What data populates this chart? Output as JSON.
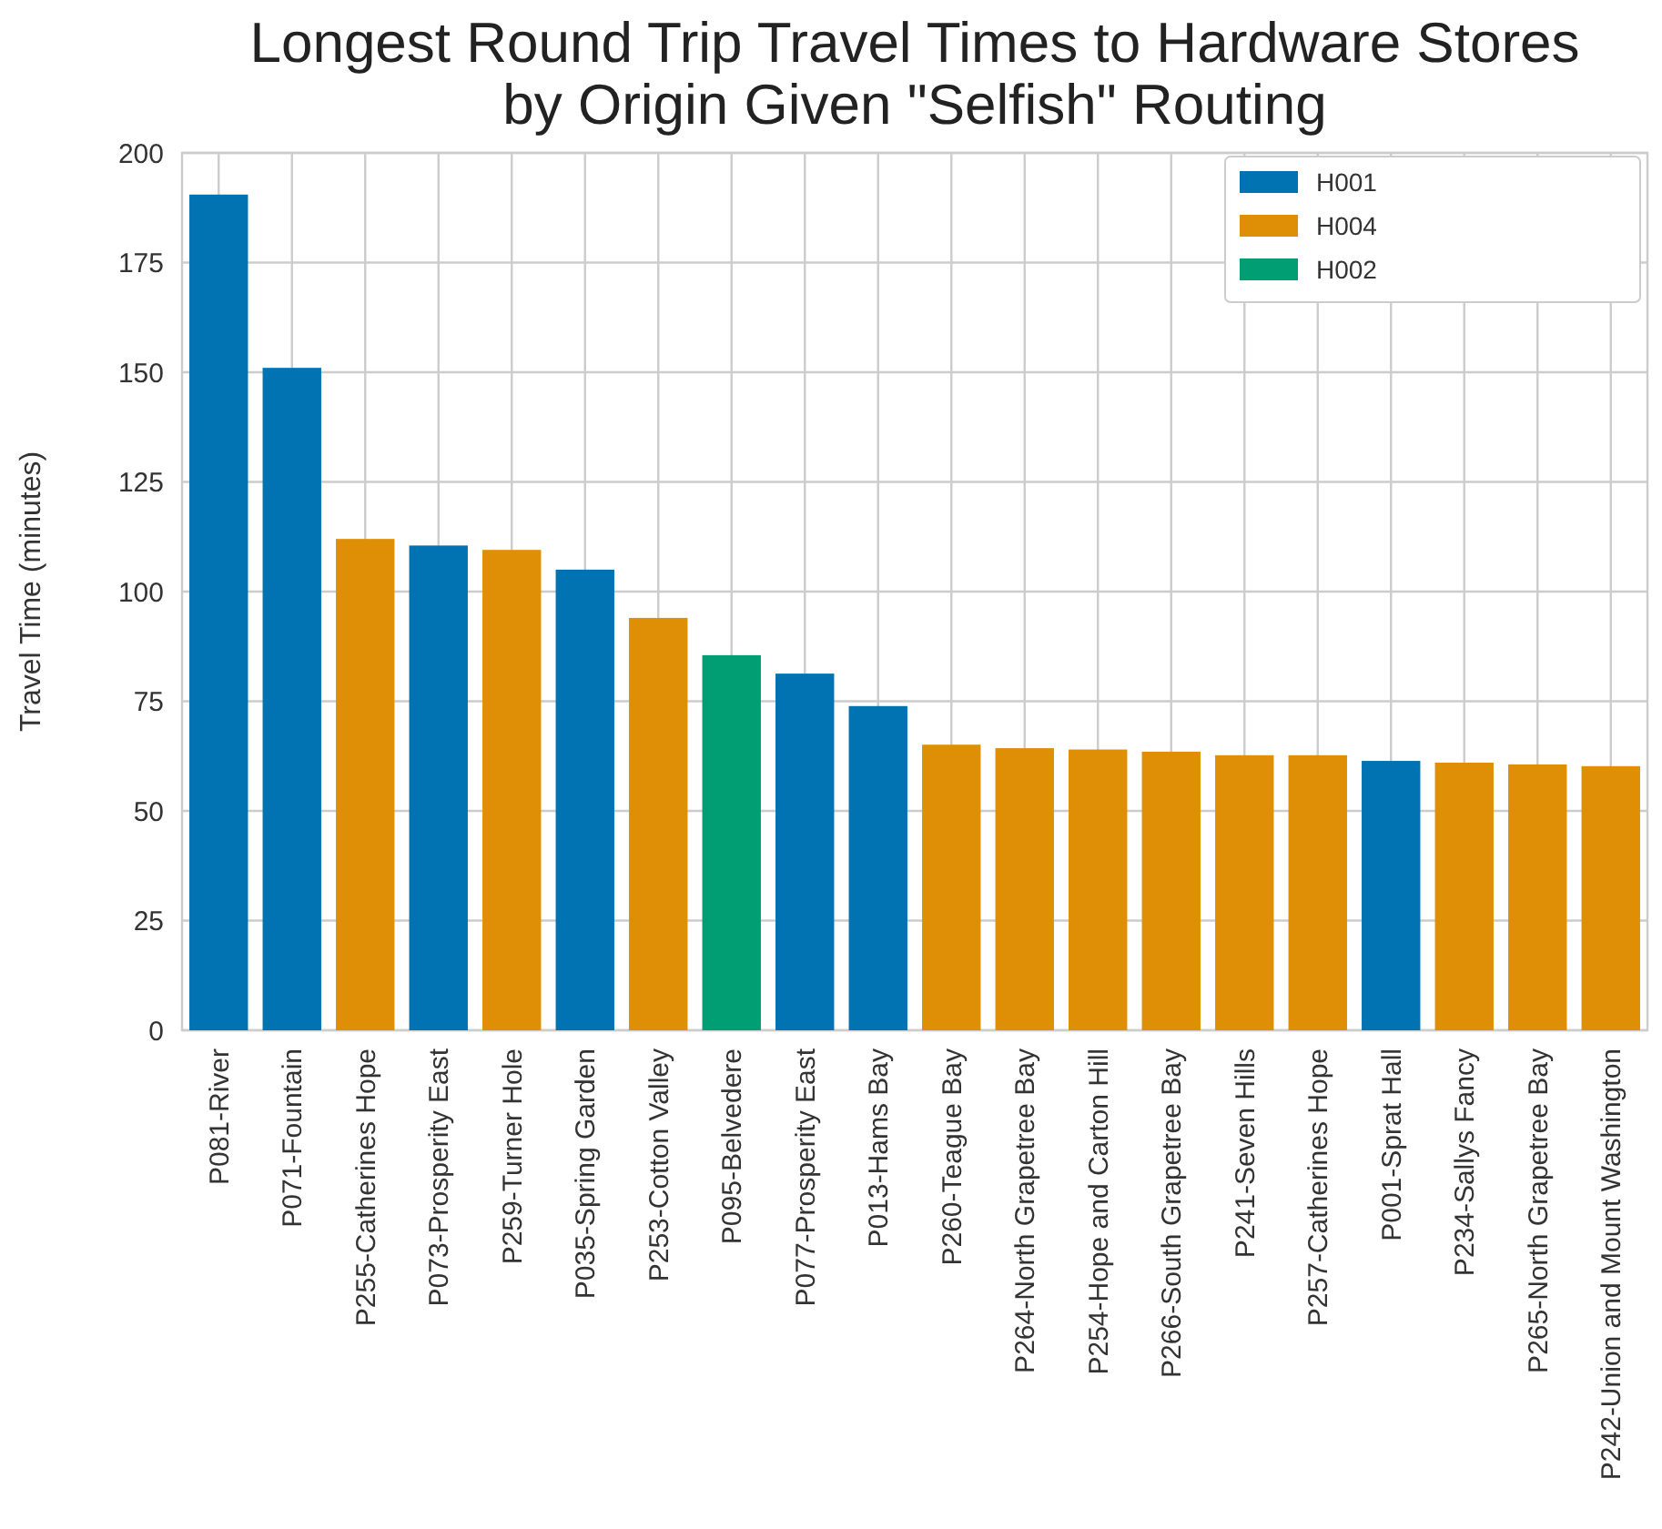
{
  "chart_data": {
    "type": "bar",
    "title": "Longest Round Trip Travel Times to Hardware Stores\nby Origin Given \"Selfish\" Routing",
    "ylabel": "Travel Time (minutes)",
    "categories": [
      "P081-River",
      "P071-Fountain",
      "P255-Catherines Hope",
      "P073-Prosperity East",
      "P259-Turner Hole",
      "P035-Spring Garden",
      "P253-Cotton Valley",
      "P095-Belvedere",
      "P077-Prosperity East",
      "P013-Hams Bay",
      "P260-Teague Bay",
      "P264-North Grapetree Bay",
      "P254-Hope and Carton Hill",
      "P266-South Grapetree Bay",
      "P241-Seven Hills",
      "P257-Catherines Hope",
      "P001-Sprat Hall",
      "P234-Sallys Fancy",
      "P265-North Grapetree Bay",
      "P242-Union and Mount Washington"
    ],
    "series": [
      {
        "name": "H001",
        "color": "#0173b2",
        "values": [
          190.5,
          151,
          null,
          110.5,
          null,
          105,
          null,
          null,
          81.3,
          73.9,
          null,
          null,
          null,
          null,
          null,
          null,
          61.4,
          null,
          null,
          null
        ]
      },
      {
        "name": "H004",
        "color": "#de8f05",
        "values": [
          null,
          null,
          112,
          null,
          109.5,
          null,
          94,
          null,
          null,
          null,
          65.1,
          64.3,
          64,
          63.5,
          62.7,
          62.7,
          null,
          61,
          60.6,
          60.2
        ]
      },
      {
        "name": "H002",
        "color": "#029e73",
        "values": [
          null,
          null,
          null,
          null,
          null,
          null,
          null,
          85.5,
          null,
          null,
          null,
          null,
          null,
          null,
          null,
          null,
          null,
          null,
          null,
          null
        ]
      }
    ],
    "stacked": true,
    "ylim": [
      0,
      200
    ],
    "yticks": [
      0,
      25,
      50,
      75,
      100,
      125,
      150,
      175,
      200
    ],
    "grid": true,
    "legend": "top right"
  }
}
